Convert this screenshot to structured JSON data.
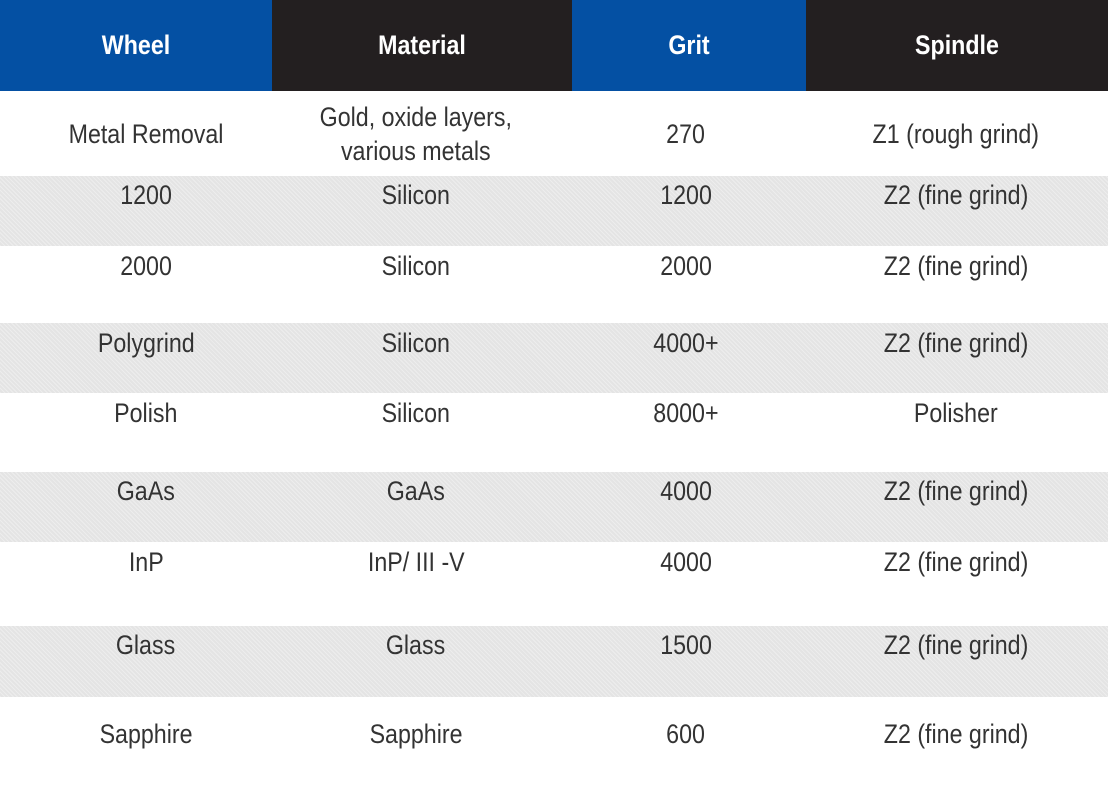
{
  "table": {
    "headers": [
      "Wheel",
      "Material",
      "Grit",
      "Spindle"
    ],
    "header_colors": [
      "#0450a3",
      "#231f20",
      "#0450a3",
      "#231f20"
    ],
    "rows": [
      [
        "Metal Removal",
        "Gold, oxide layers,\nvarious metals",
        "270",
        "Z1 (rough grind)"
      ],
      [
        "1200",
        "Silicon",
        "1200",
        "Z2 (fine grind)"
      ],
      [
        "2000",
        "Silicon",
        "2000",
        "Z2 (fine grind)"
      ],
      [
        "Polygrind",
        "Silicon",
        "4000+",
        "Z2 (fine grind)"
      ],
      [
        "Polish",
        "Silicon",
        "8000+",
        "Polisher"
      ],
      [
        "GaAs",
        "GaAs",
        "4000",
        "Z2 (fine grind)"
      ],
      [
        "InP",
        "InP/ III -V",
        "4000",
        "Z2 (fine grind)"
      ],
      [
        "Glass",
        "Glass",
        "1500",
        "Z2 (fine grind)"
      ],
      [
        "Sapphire",
        "Sapphire",
        "600",
        "Z2 (fine grind)"
      ]
    ]
  }
}
